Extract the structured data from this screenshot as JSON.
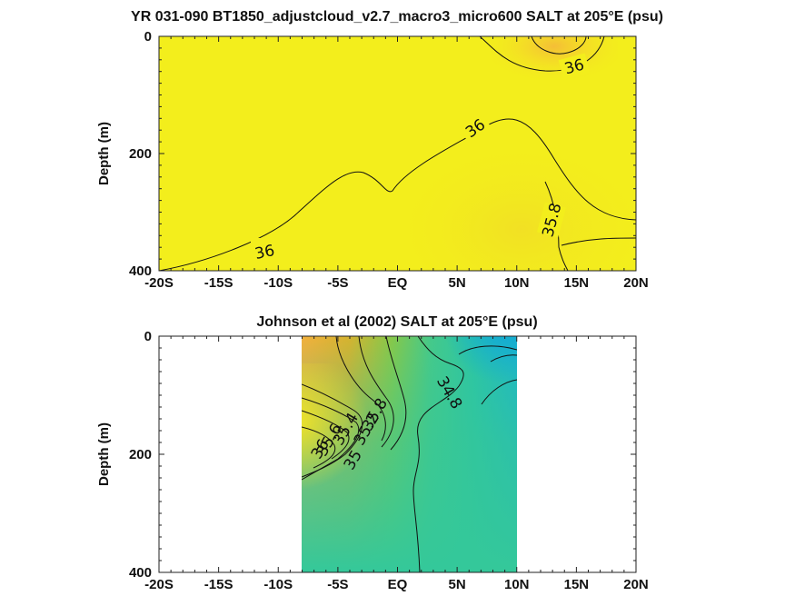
{
  "chart_data": [
    {
      "type": "heatmap",
      "title": "YR 031-090 BT1850_adjustcloud_v2.7_macro3_micro600 SALT at 205°E (psu)",
      "ylabel": "Depth (m)",
      "xlabel": "",
      "xlim": [
        -20,
        20
      ],
      "ylim": [
        0,
        400
      ],
      "y_reversed": true,
      "x_tick_labels": [
        "-20S",
        "-15S",
        "-10S",
        "-5S",
        "EQ",
        "5N",
        "10N",
        "15N",
        "20N"
      ],
      "y_tick_labels": [
        "0",
        "200",
        "400"
      ],
      "contour_labels": [
        "36",
        "36",
        "36",
        "35.8"
      ],
      "fill_color": "#f3ee1c",
      "data_extent_lon": [
        -20,
        20
      ]
    },
    {
      "type": "heatmap",
      "title": "Johnson et al (2002) SALT at 205°E (psu)",
      "ylabel": "Depth (m)",
      "xlabel": "",
      "xlim": [
        -20,
        20
      ],
      "ylim": [
        0,
        400
      ],
      "y_reversed": true,
      "x_tick_labels": [
        "-20S",
        "-15S",
        "-10S",
        "-5S",
        "EQ",
        "5N",
        "10N",
        "15N",
        "20N"
      ],
      "y_tick_labels": [
        "0",
        "200",
        "400"
      ],
      "contour_labels": [
        "34.8",
        "35",
        "35.2",
        "35.4",
        "35.6",
        "35.8",
        "36"
      ],
      "data_extent_lon": [
        -8,
        10
      ]
    }
  ]
}
